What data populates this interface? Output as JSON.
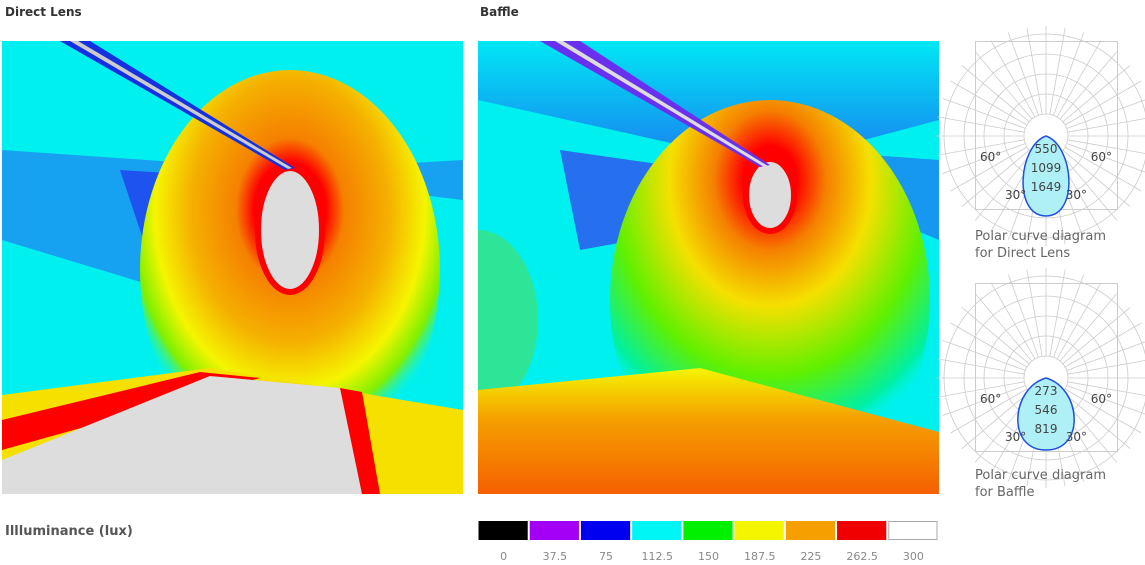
{
  "panels": [
    {
      "title": "Direct Lens"
    },
    {
      "title": "Baffle"
    }
  ],
  "polar": [
    {
      "angles": [
        "60°",
        "60°",
        "30°",
        "30°"
      ],
      "intensities": [
        "550",
        "1099",
        "1649"
      ],
      "caption": [
        "Polar curve diagram",
        "for Direct Lens"
      ]
    },
    {
      "angles": [
        "60°",
        "60°",
        "30°",
        "30°"
      ],
      "intensities": [
        "273",
        "546",
        "819"
      ],
      "caption": [
        "Polar curve diagram",
        "for Baffle"
      ]
    }
  ],
  "legend": {
    "title": "Illluminance (lux)",
    "colors": [
      "#000000",
      "#a300f5",
      "#0000f0",
      "#00f5f5",
      "#00f000",
      "#f5f500",
      "#f5a000",
      "#f00000",
      "#ffffff"
    ],
    "values": [
      0,
      37.5,
      75,
      112.5,
      150,
      187.5,
      225,
      262.5,
      300
    ]
  }
}
